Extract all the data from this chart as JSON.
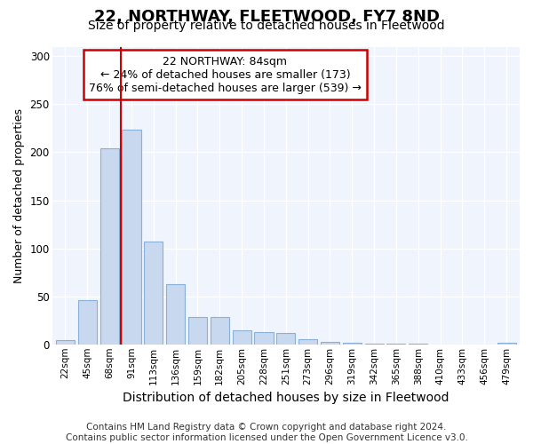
{
  "title": "22, NORTHWAY, FLEETWOOD, FY7 8ND",
  "subtitle": "Size of property relative to detached houses in Fleetwood",
  "xlabel": "Distribution of detached houses by size in Fleetwood",
  "ylabel": "Number of detached properties",
  "categories": [
    "22sqm",
    "45sqm",
    "68sqm",
    "91sqm",
    "113sqm",
    "136sqm",
    "159sqm",
    "182sqm",
    "205sqm",
    "228sqm",
    "251sqm",
    "273sqm",
    "296sqm",
    "319sqm",
    "342sqm",
    "365sqm",
    "388sqm",
    "410sqm",
    "433sqm",
    "456sqm",
    "479sqm"
  ],
  "values": [
    4,
    46,
    204,
    224,
    107,
    63,
    28,
    28,
    15,
    13,
    12,
    5,
    3,
    2,
    1,
    1,
    1,
    0,
    0,
    0,
    2
  ],
  "bar_color": "#c8d8ee",
  "bar_edge_color": "#8ab0d8",
  "vline_x": 2.5,
  "vline_color": "#cc0000",
  "annotation_text": "22 NORTHWAY: 84sqm\n← 24% of detached houses are smaller (173)\n76% of semi-detached houses are larger (539) →",
  "annotation_box_color": "#ffffff",
  "annotation_box_edge_color": "#cc0000",
  "ylim": [
    0,
    310
  ],
  "yticks": [
    0,
    50,
    100,
    150,
    200,
    250,
    300
  ],
  "footer_text": "Contains HM Land Registry data © Crown copyright and database right 2024.\nContains public sector information licensed under the Open Government Licence v3.0.",
  "bg_color": "#ffffff",
  "plot_bg_color": "#f0f4fc",
  "title_fontsize": 13,
  "subtitle_fontsize": 10,
  "annotation_fontsize": 9,
  "footer_fontsize": 7.5,
  "xlabel_fontsize": 10,
  "ylabel_fontsize": 9
}
